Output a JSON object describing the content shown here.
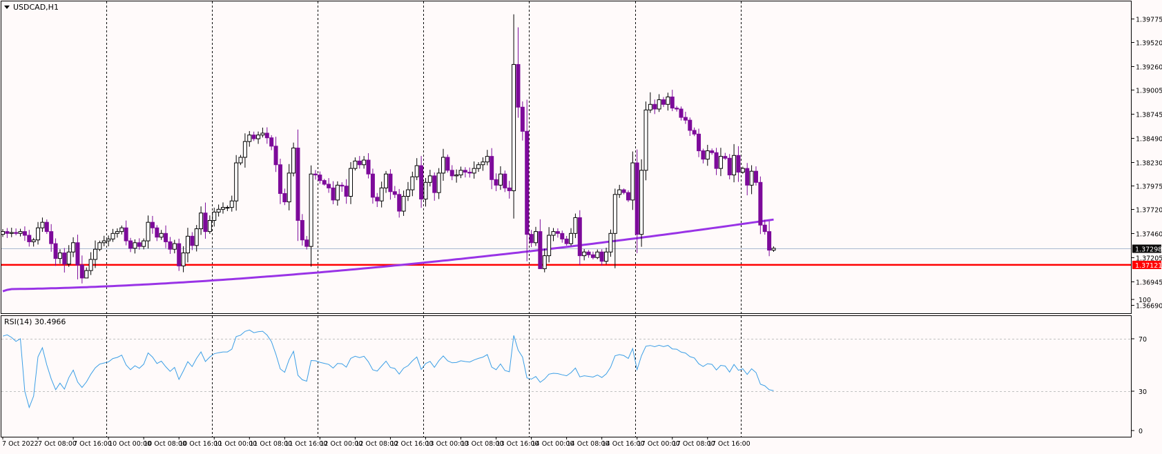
{
  "symbol_label": "USDCAD,H1",
  "rsi_label": "RSI(14) 30.4966",
  "current_price": "1.37298",
  "support_price": "1.37121",
  "colors": {
    "background": "#fffafa",
    "frame": "#000000",
    "grid": "#000000",
    "bull_fill": "#ffffff",
    "bull_stroke": "#000000",
    "bear": "#7d0a9a",
    "ma": "#9933e6",
    "support": "#ff0000",
    "bid_line": "#a9b8d0",
    "rsi": "#3a9ee6",
    "rsi_levels": "#c0c0c0"
  },
  "chart_data": [
    {
      "type": "candlestick",
      "title": "USDCAD,H1",
      "ylim": [
        1.3663,
        1.399
      ],
      "y_ticks": [
        1.39775,
        1.3952,
        1.3926,
        1.39005,
        1.38745,
        1.3849,
        1.3823,
        1.37975,
        1.3772,
        1.3746,
        1.372,
        1.36945,
        1.3669
      ],
      "y_tick_labels": [
        "1.39775",
        "1.39520",
        "1.39260",
        "1.39005",
        "1.38745",
        "1.38490",
        "1.38230",
        "1.37975",
        "1.37720",
        "1.37460",
        "1.37205",
        "1.36945",
        "1.36690"
      ],
      "x_labels": [
        {
          "index": 0,
          "text": "7 Oct 2022"
        },
        {
          "index": 8,
          "text": "7 Oct 08:00"
        },
        {
          "index": 16,
          "text": "7 Oct 16:00"
        },
        {
          "index": 24,
          "text": "10 Oct 00:00"
        },
        {
          "index": 32,
          "text": "10 Oct 08:00"
        },
        {
          "index": 40,
          "text": "10 Oct 16:00"
        },
        {
          "index": 48,
          "text": "11 Oct 00:00"
        },
        {
          "index": 56,
          "text": "11 Oct 08:00"
        },
        {
          "index": 64,
          "text": "11 Oct 16:00"
        },
        {
          "index": 72,
          "text": "12 Oct 00:00"
        },
        {
          "index": 80,
          "text": "12 Oct 08:00"
        },
        {
          "index": 88,
          "text": "12 Oct 16:00"
        },
        {
          "index": 96,
          "text": "13 Oct 00:00"
        },
        {
          "index": 104,
          "text": "13 Oct 08:00"
        },
        {
          "index": 112,
          "text": "13 Oct 16:00"
        },
        {
          "index": 120,
          "text": "14 Oct 00:00"
        },
        {
          "index": 128,
          "text": "14 Oct 08:00"
        },
        {
          "index": 136,
          "text": "14 Oct 16:00"
        },
        {
          "index": 144,
          "text": "17 Oct 00:00"
        },
        {
          "index": 152,
          "text": "17 Oct 08:00"
        },
        {
          "index": 160,
          "text": "17 Oct 16:00"
        }
      ],
      "day_separators": [
        24,
        48,
        72,
        96,
        120,
        144,
        168
      ],
      "close": [
        1.3748,
        1.3746,
        1.3747,
        1.3746,
        1.3748,
        1.3744,
        1.3737,
        1.3739,
        1.3752,
        1.3758,
        1.3748,
        1.3735,
        1.3719,
        1.3725,
        1.3713,
        1.3726,
        1.3736,
        1.3712,
        1.3698,
        1.3706,
        1.3718,
        1.3729,
        1.3736,
        1.3738,
        1.374,
        1.3746,
        1.3748,
        1.3752,
        1.3738,
        1.373,
        1.3736,
        1.3732,
        1.3738,
        1.3758,
        1.3752,
        1.3742,
        1.3746,
        1.3737,
        1.3729,
        1.3735,
        1.3711,
        1.3725,
        1.3743,
        1.3733,
        1.3751,
        1.3768,
        1.3748,
        1.376,
        1.3769,
        1.3772,
        1.3774,
        1.3774,
        1.3781,
        1.3822,
        1.3828,
        1.3845,
        1.3852,
        1.3848,
        1.3852,
        1.3854,
        1.3849,
        1.384,
        1.382,
        1.3789,
        1.378,
        1.3811,
        1.3838,
        1.376,
        1.3739,
        1.3732,
        1.381,
        1.3809,
        1.3803,
        1.3799,
        1.3795,
        1.3782,
        1.3798,
        1.3797,
        1.3786,
        1.3816,
        1.3824,
        1.382,
        1.3825,
        1.381,
        1.3785,
        1.3781,
        1.3795,
        1.381,
        1.3791,
        1.3788,
        1.377,
        1.3786,
        1.3793,
        1.3807,
        1.3819,
        1.3783,
        1.3801,
        1.3808,
        1.379,
        1.3811,
        1.3828,
        1.3814,
        1.3808,
        1.3809,
        1.3814,
        1.3812,
        1.3811,
        1.3816,
        1.382,
        1.3823,
        1.3829,
        1.3804,
        1.3798,
        1.381,
        1.3795,
        1.3792,
        1.3928,
        1.3882,
        1.3856,
        1.3745,
        1.3736,
        1.3748,
        1.3708,
        1.3722,
        1.3744,
        1.3748,
        1.3746,
        1.374,
        1.3735,
        1.3746,
        1.3763,
        1.3722,
        1.3726,
        1.3723,
        1.372,
        1.3726,
        1.3716,
        1.3726,
        1.3746,
        1.3788,
        1.3793,
        1.379,
        1.3782,
        1.3822,
        1.3745,
        1.3814,
        1.3879,
        1.3885,
        1.388,
        1.389,
        1.3885,
        1.3893,
        1.3881,
        1.388,
        1.3871,
        1.3868,
        1.3857,
        1.3853,
        1.3835,
        1.3826,
        1.3835,
        1.3833,
        1.3816,
        1.3829,
        1.3827,
        1.3809,
        1.383,
        1.3812,
        1.3816,
        1.3798,
        1.3813,
        1.3801,
        1.3755,
        1.3748,
        1.3728,
        1.373
      ],
      "ma_start": 1.3682,
      "ma_end": 1.3757,
      "support": 1.37121,
      "bid": 1.37298
    },
    {
      "type": "line",
      "title": "RSI(14) 30.4966",
      "ylim": [
        0,
        100
      ],
      "levels": [
        30,
        70
      ],
      "y_tick_labels": [
        "100",
        "70",
        "30",
        "0"
      ],
      "last_value": 30.4966
    }
  ]
}
